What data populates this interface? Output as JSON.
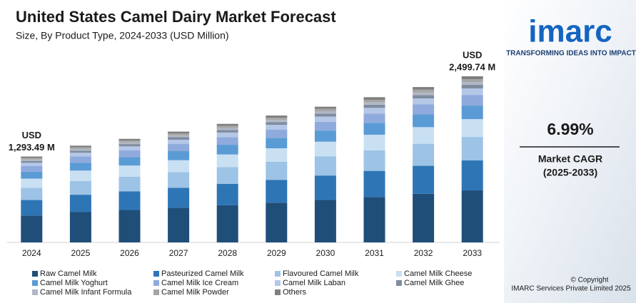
{
  "chart_data": {
    "type": "stacked_bar",
    "title": "United States Camel Dairy Market Forecast",
    "subtitle": "Size, By Product Type, 2024-2033 (USD Million)",
    "categories": [
      "2024",
      "2025",
      "2026",
      "2027",
      "2028",
      "2029",
      "2030",
      "2031",
      "2032",
      "2033"
    ],
    "series": [
      {
        "name": "Raw Camel Milk",
        "color": "#1f4e79",
        "values": [
          405,
          456,
          488,
          522,
          559,
          598,
          639,
          684,
          732,
          783
        ]
      },
      {
        "name": "Pasteurized Camel Milk",
        "color": "#2e75b6",
        "values": [
          233,
          262,
          281,
          300,
          321,
          344,
          368,
          393,
          421,
          451
        ]
      },
      {
        "name": "Flavoured Camel Milk",
        "color": "#9dc3e6",
        "values": [
          184,
          207,
          221,
          237,
          253,
          271,
          290,
          310,
          332,
          354
        ]
      },
      {
        "name": "Camel Milk Cheese",
        "color": "#c9e0f3",
        "values": [
          138,
          156,
          167,
          178,
          191,
          204,
          219,
          234,
          250,
          268
        ]
      },
      {
        "name": "Camel Milk Yoghurt",
        "color": "#5b9bd5",
        "values": [
          106,
          119,
          128,
          137,
          146,
          157,
          168,
          179,
          192,
          204
        ]
      },
      {
        "name": "Camel Milk Ice Cream",
        "color": "#8faadc",
        "values": [
          83,
          93,
          100,
          107,
          114,
          122,
          131,
          140,
          150,
          161
        ]
      },
      {
        "name": "Camel Milk Laban",
        "color": "#b4c7e7",
        "values": [
          50,
          57,
          61,
          65,
          70,
          74,
          80,
          85,
          91,
          97
        ]
      },
      {
        "name": "Camel Milk Ghee",
        "color": "#7f8c9f",
        "values": [
          28,
          32,
          34,
          37,
          39,
          42,
          45,
          48,
          51,
          54
        ]
      },
      {
        "name": "Camel Milk Infant Formula",
        "color": "#b0b8c4",
        "values": [
          22,
          25,
          26,
          28,
          30,
          32,
          35,
          37,
          40,
          43
        ]
      },
      {
        "name": "Camel Milk Powder",
        "color": "#a6a6a6",
        "values": [
          22,
          25,
          26,
          28,
          30,
          32,
          35,
          37,
          40,
          43
        ]
      },
      {
        "name": "Others",
        "color": "#7f7f7f",
        "values": [
          22,
          25,
          27,
          29,
          32,
          34,
          33,
          39,
          40,
          43
        ]
      }
    ],
    "annotations": [
      {
        "x": "2024",
        "text": [
          "USD",
          "1,293.49 M"
        ]
      },
      {
        "x": "2033",
        "text": [
          "USD",
          "2,499.74 M"
        ]
      }
    ]
  },
  "panel": {
    "logo": "imarc",
    "tagline": "TRANSFORMING IDEAS INTO IMPACT",
    "cagr": "6.99%",
    "cagr_label": "Market CAGR",
    "cagr_period": "(2025-2033)",
    "copyright": "© Copyright",
    "company": "IMARC Services Private Limited 2025"
  }
}
